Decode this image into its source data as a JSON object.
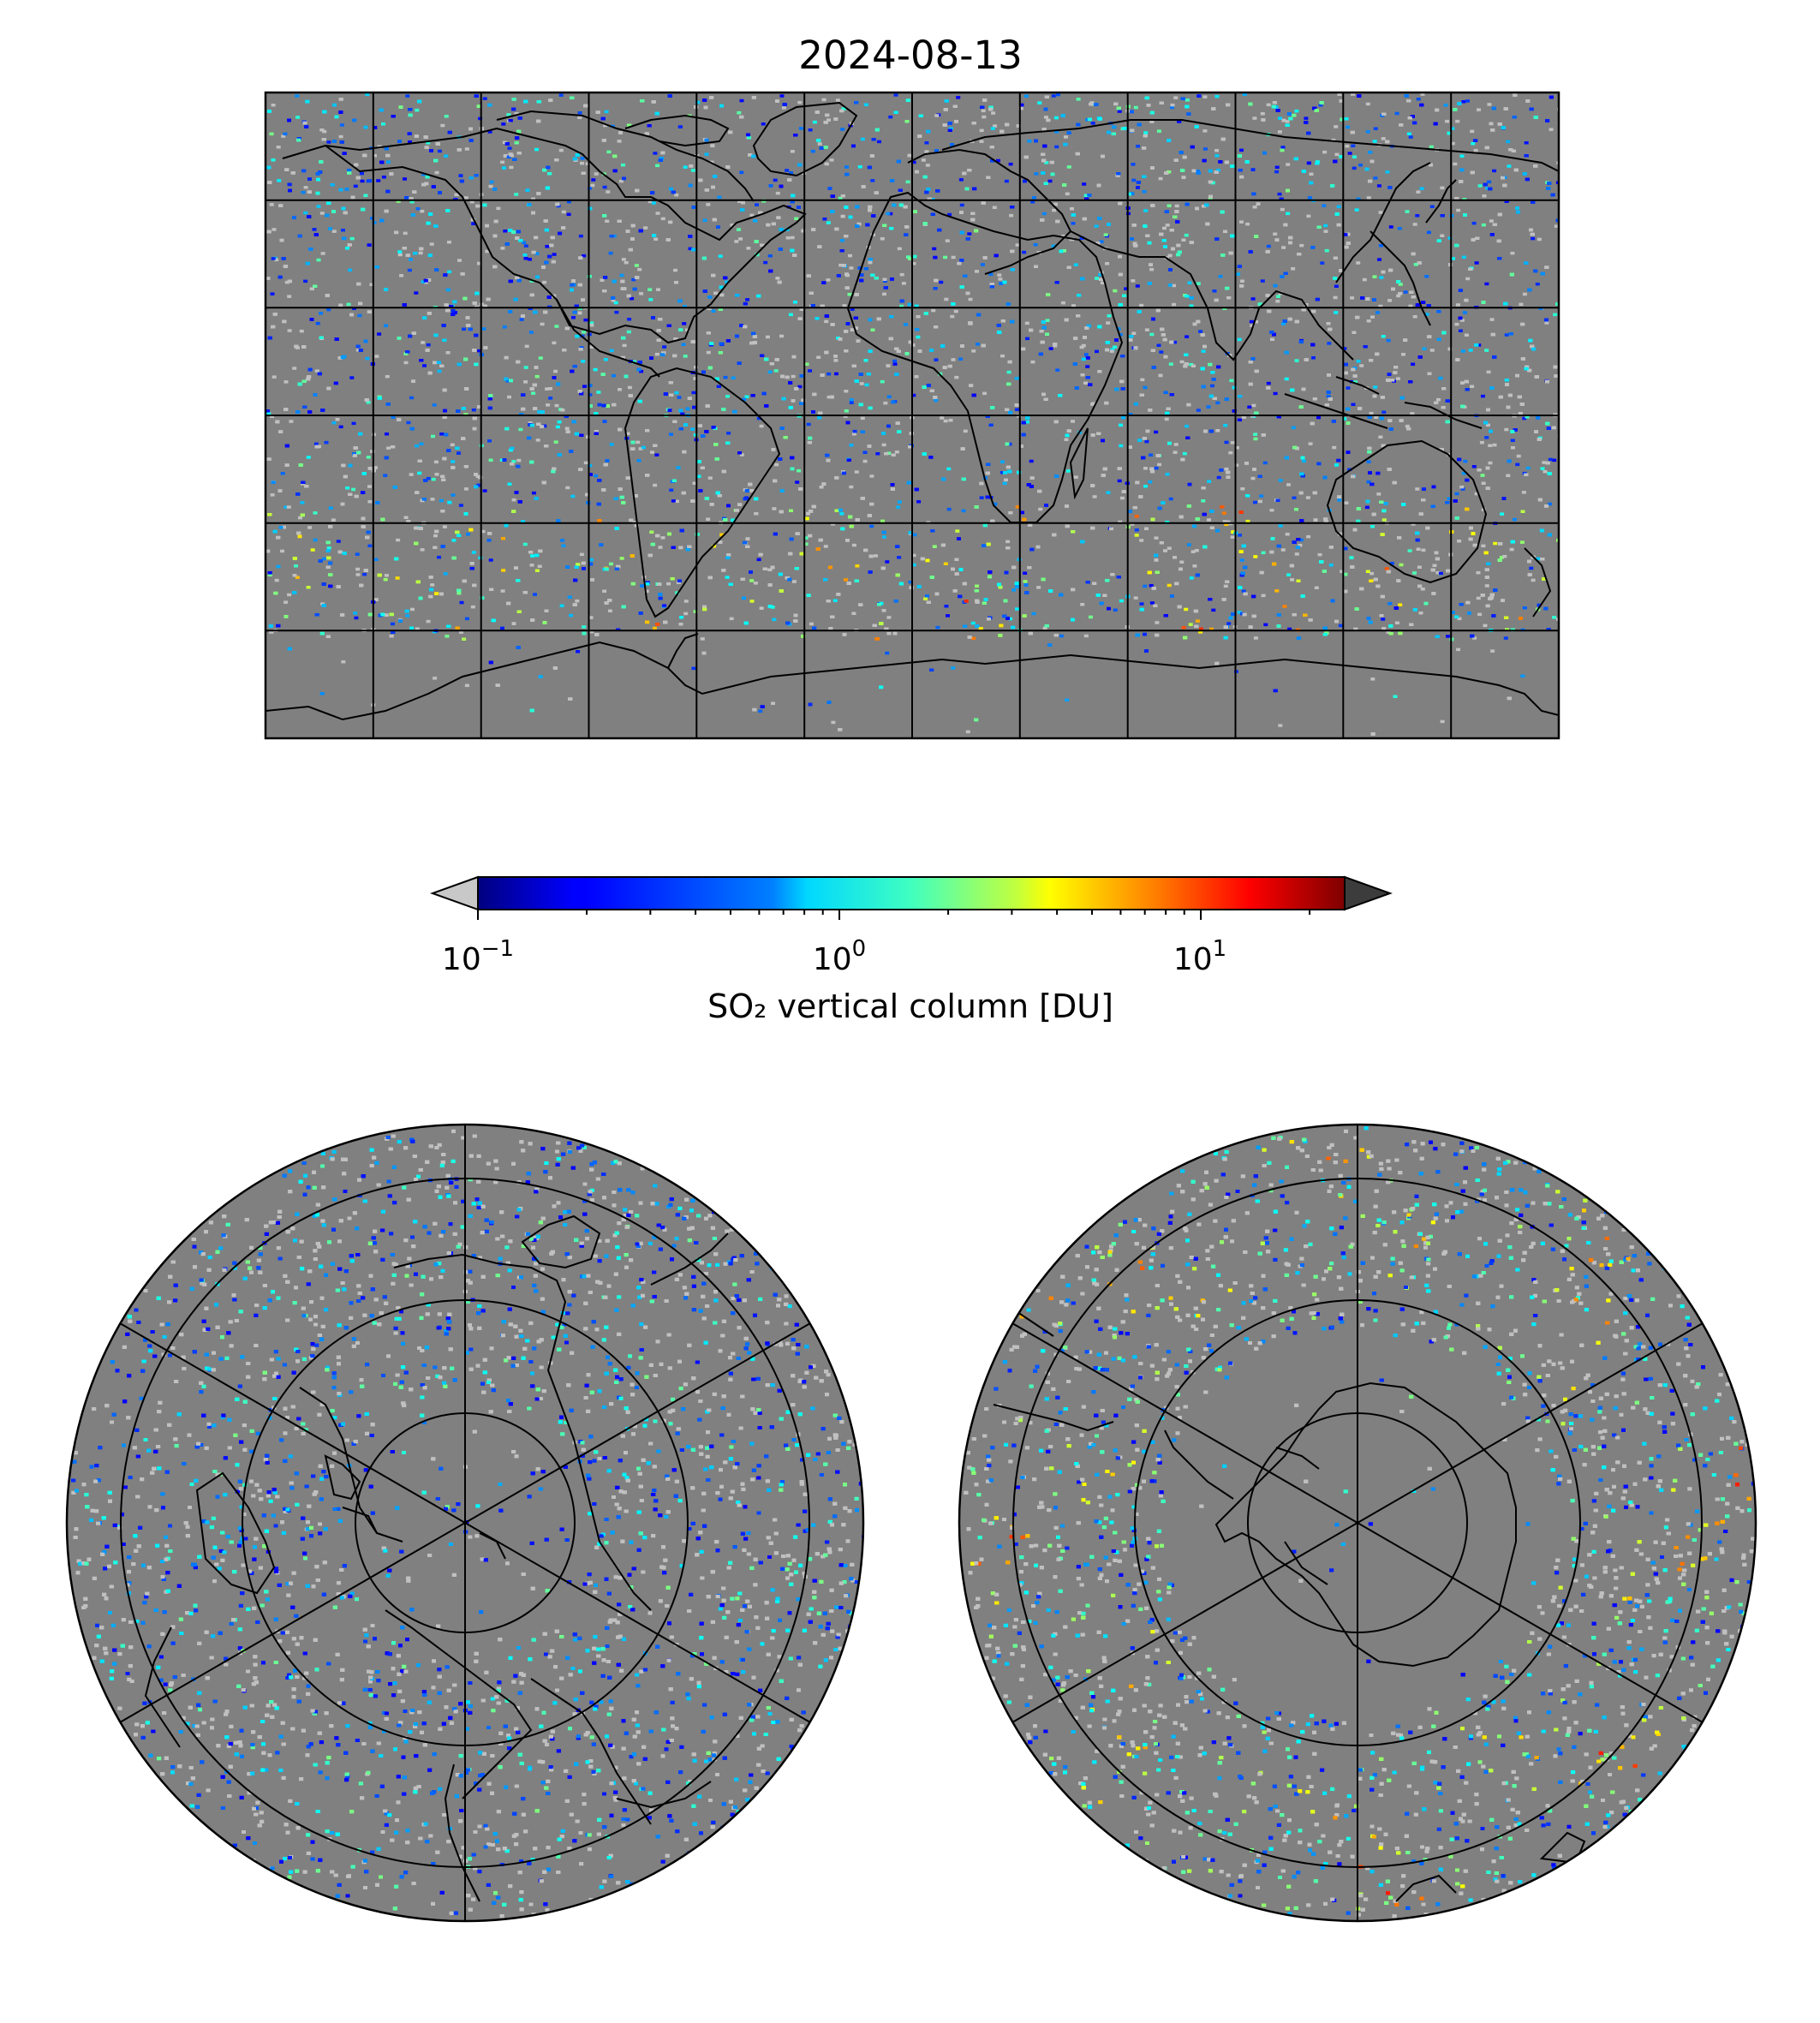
{
  "figure": {
    "title": "2024-08-13",
    "colorbar": {
      "label": "SO₂ vertical column [DU]",
      "scale": "log",
      "range": [
        0.1,
        25
      ],
      "ticks": [
        {
          "base": "10",
          "exp": "−1",
          "value": 0.1
        },
        {
          "base": "10",
          "exp": "0",
          "value": 1
        },
        {
          "base": "10",
          "exp": "1",
          "value": 10
        }
      ],
      "extend": "both",
      "under_color": "#c8c8c8",
      "over_color": "#3c3c3c",
      "colormap": "jet"
    },
    "colors": {
      "no_data": "#808080",
      "below_range": "#c0c0c0",
      "coastline": "#000000",
      "graticule": "#000000"
    },
    "panels": [
      {
        "projection": "PlateCarree",
        "gridlines": {
          "meridian_step_deg": 30,
          "parallel_step_deg": 30
        }
      },
      {
        "projection": "NorthPolarStereo",
        "gridlines": {
          "meridians": 6,
          "parallels": 4
        }
      },
      {
        "projection": "SouthPolarStereo",
        "gridlines": {
          "meridians": 6,
          "parallels": 4
        }
      }
    ]
  }
}
